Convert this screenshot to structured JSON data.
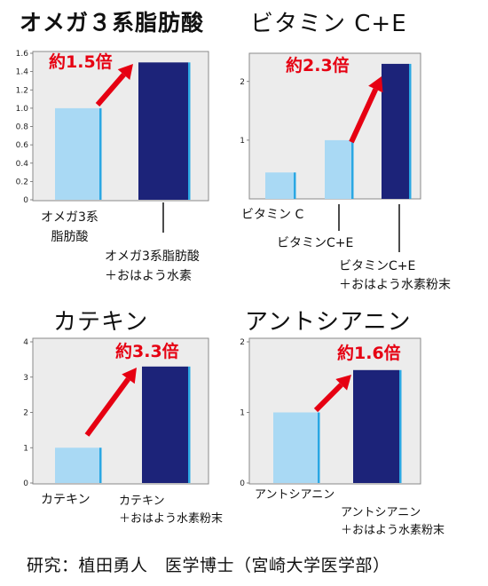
{
  "colors": {
    "baseline_bar": "#a9d9f4",
    "product_bar": "#1c2379",
    "bar_edge": "#2aa7e3",
    "arrow": "#e60012",
    "ratio_text": "#e60012",
    "frame": "#8a8a8a",
    "plot_bg": "#ececec"
  },
  "charts": [
    {
      "title": "オメガ３系脂肪酸",
      "ratio_label": "約1.5倍",
      "bar_labels": [
        [
          "オメガ3系",
          "脂肪酸"
        ],
        [
          "オメガ3系脂肪酸",
          "＋おはよう水素"
        ]
      ]
    },
    {
      "title": "ビタミン C+E",
      "ratio_label": "約2.3倍",
      "bar_labels": [
        [
          "ビタミン C"
        ],
        [
          "ビタミンC+E"
        ],
        [
          "ビタミンC+E",
          "＋おはよう水素粉末"
        ]
      ]
    },
    {
      "title": "カテキン",
      "ratio_label": "約3.3倍",
      "bar_labels": [
        [
          "カテキン"
        ],
        [
          "カテキン",
          "＋おはよう水素粉末"
        ]
      ]
    },
    {
      "title": "アントシアニン",
      "ratio_label": "約1.6倍",
      "bar_labels": [
        [
          "アントシアニン"
        ],
        [
          "アントシアニン",
          "＋おはよう水素粉末"
        ]
      ]
    }
  ],
  "chart_data": [
    {
      "type": "bar",
      "title": "オメガ３系脂肪酸",
      "categories": [
        "オメガ3系脂肪酸",
        "オメガ3系脂肪酸＋おはよう水素"
      ],
      "values": [
        1.0,
        1.5
      ],
      "ylim": [
        0,
        1.6
      ],
      "yticks": [
        "0",
        "0.2",
        "0.4",
        "0.6",
        "0.8",
        "1.0",
        "1.2",
        "1.4",
        "1.6"
      ],
      "annotation": "約1.5倍",
      "grid": false
    },
    {
      "type": "bar",
      "title": "ビタミン C+E",
      "categories": [
        "ビタミン C",
        "ビタミンC+E",
        "ビタミンC+E＋おはよう水素粉末"
      ],
      "values": [
        0.45,
        1.0,
        2.3
      ],
      "ylim": [
        0,
        2.45
      ],
      "yticks": [
        "1",
        "2"
      ],
      "annotation": "約2.3倍",
      "grid": false
    },
    {
      "type": "bar",
      "title": "カテキン",
      "categories": [
        "カテキン",
        "カテキン＋おはよう水素粉末"
      ],
      "values": [
        1.0,
        3.3
      ],
      "ylim": [
        0,
        4
      ],
      "yticks": [
        "0",
        "1",
        "2",
        "3",
        "4"
      ],
      "annotation": "約3.3倍",
      "grid": false
    },
    {
      "type": "bar",
      "title": "アントシアニン",
      "categories": [
        "アントシアニン",
        "アントシアニン＋おはよう水素粉末"
      ],
      "values": [
        1.0,
        1.6
      ],
      "ylim": [
        0,
        2
      ],
      "yticks": [
        "0",
        "1",
        "2"
      ],
      "annotation": "約1.6倍",
      "grid": false
    }
  ],
  "credit": "研究：植田勇人　医学博士（宮崎大学医学部）"
}
